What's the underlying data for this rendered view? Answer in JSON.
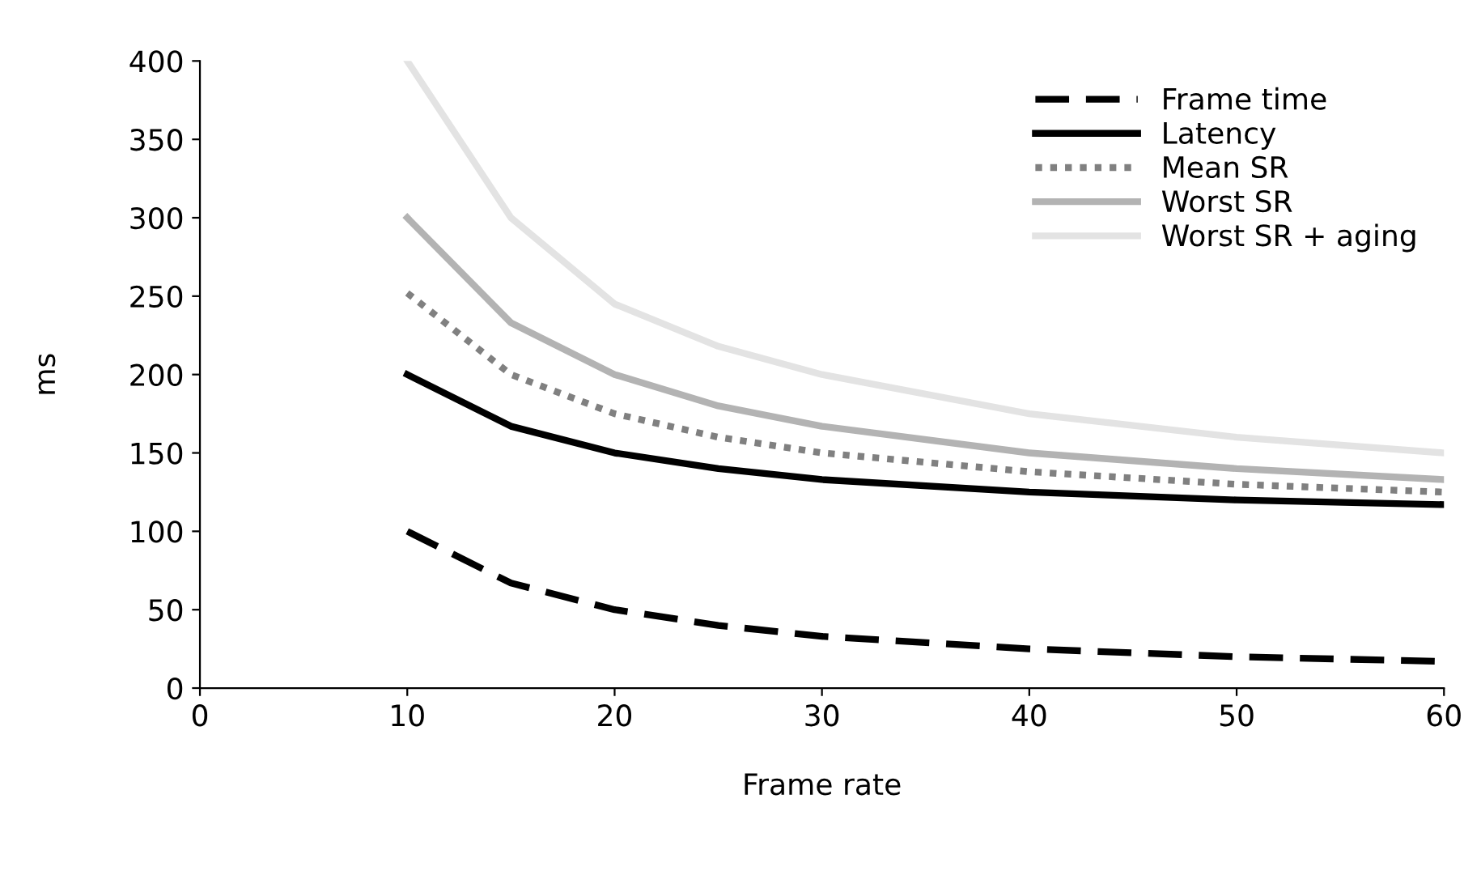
{
  "chart_data": {
    "type": "line",
    "xlabel": "Frame rate",
    "ylabel": "ms",
    "x": [
      10,
      15,
      20,
      25,
      30,
      40,
      50,
      60
    ],
    "series": [
      {
        "name": "Frame time",
        "color": "#000000",
        "line_style": "dashed",
        "values": [
          100,
          67,
          50,
          40,
          33,
          25,
          20,
          17
        ]
      },
      {
        "name": "Latency",
        "color": "#000000",
        "line_style": "solid",
        "values": [
          200,
          167,
          150,
          140,
          133,
          125,
          120,
          117
        ]
      },
      {
        "name": "Mean SR",
        "color": "#808080",
        "line_style": "dotted",
        "values": [
          252,
          200,
          175,
          160,
          150,
          138,
          130,
          125
        ]
      },
      {
        "name": "Worst SR",
        "color": "#b3b3b3",
        "line_style": "solid",
        "values": [
          300,
          233,
          200,
          180,
          167,
          150,
          140,
          133
        ]
      },
      {
        "name": "Worst SR + aging",
        "color": "#e3e3e3",
        "line_style": "solid",
        "values": [
          400,
          300,
          245,
          218,
          200,
          175,
          160,
          150
        ]
      }
    ],
    "xlim": [
      0,
      60
    ],
    "xticks": [
      0,
      10,
      20,
      30,
      40,
      50,
      60
    ],
    "ylim": [
      0,
      400
    ],
    "yticks": [
      0,
      50,
      100,
      150,
      200,
      250,
      300,
      350,
      400
    ],
    "grid": false,
    "legend": "top right",
    "marker": "none"
  }
}
